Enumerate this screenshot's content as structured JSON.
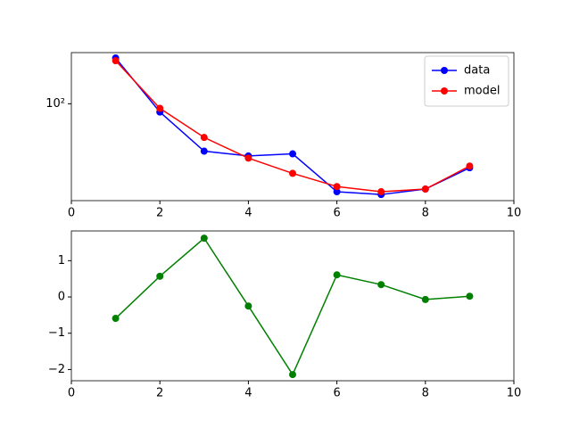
{
  "chart_data": [
    {
      "type": "line",
      "log_y": true,
      "legend": "upper right",
      "x": [
        1,
        2,
        3,
        4,
        5,
        6,
        7,
        8,
        9
      ],
      "series": [
        {
          "name": "data",
          "color": "#0000ff",
          "values": [
            231,
            86,
            42,
            38.5,
            40,
            20,
            19,
            21,
            31
          ]
        },
        {
          "name": "model",
          "color": "#ff0000",
          "values": [
            220,
            92,
            54,
            37,
            28,
            22,
            20,
            21,
            32
          ]
        }
      ],
      "xlim": [
        0,
        10
      ],
      "xticks": [
        0,
        2,
        4,
        6,
        8,
        10
      ],
      "ylim": [
        17,
        255
      ],
      "yticks": [
        {
          "value": 100,
          "label": "10²"
        }
      ]
    },
    {
      "type": "line",
      "x": [
        1,
        2,
        3,
        4,
        5,
        6,
        7,
        8,
        9
      ],
      "series": [
        {
          "color": "#008000",
          "values": [
            -0.59,
            0.57,
            1.62,
            -0.25,
            -2.14,
            0.61,
            0.34,
            -0.07,
            0.02
          ]
        }
      ],
      "xlim": [
        0,
        10
      ],
      "xticks": [
        0,
        2,
        4,
        6,
        8,
        10
      ],
      "ylim": [
        -2.31,
        1.82
      ],
      "yticks": [
        {
          "value": -2,
          "label": "−2"
        },
        {
          "value": -1,
          "label": "−1"
        },
        0,
        1
      ]
    }
  ]
}
